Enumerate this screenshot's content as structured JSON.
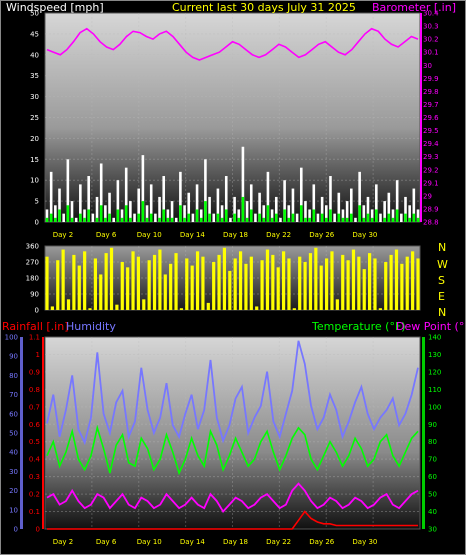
{
  "header": {
    "left_title": "Windspeed [mph]",
    "center_title": "Current last 30 days July 31 2025",
    "right_title": "Barometer [.in]"
  },
  "direction_labels": [
    "N",
    "W",
    "S",
    "E",
    "N"
  ],
  "bottom_header": {
    "rainfall": "Rainfall [.in]",
    "humidity": "Humidity",
    "temperature": "Temperature (°F)",
    "dewpoint": "Dew Point (°F)"
  },
  "colors": {
    "windspeed": "#ffffff",
    "gust": "#00ff00",
    "barometer": "#ff00ff",
    "direction": "#ffff00",
    "rainfall": "#ff0000",
    "humidity": "#7777ff",
    "temperature": "#00ff00",
    "dewpoint": "#ff00ff",
    "center_title": "#ffff00",
    "frame": "#cccccc"
  },
  "chart_data": [
    {
      "type": "line",
      "name": "wind-barometer",
      "x_ticks": [
        "Day 2",
        "Day 6",
        "Day 10",
        "Day 14",
        "Day 18",
        "Day 22",
        "Day 26",
        "Day 30"
      ],
      "y_left_ticks": [
        "0",
        "5",
        "10",
        "15",
        "20",
        "25",
        "30",
        "35",
        "40",
        "45",
        "50"
      ],
      "ylim_left": [
        0,
        50
      ],
      "y_right_ticks": [
        "28.8",
        "28.9",
        "29",
        "29.1",
        "29.2",
        "29.3",
        "29.4",
        "29.5",
        "29.6",
        "29.7",
        "29.8",
        "29.9",
        "30",
        "30.1",
        "30.2",
        "30.3",
        "30.4"
      ],
      "ylim_right": [
        28.8,
        30.4
      ],
      "series": [
        {
          "key": "windspeed",
          "axis": "left",
          "values": [
            3,
            12,
            4,
            8,
            2,
            15,
            5,
            1,
            9,
            3,
            11,
            2,
            6,
            14,
            4,
            7,
            1,
            10,
            3,
            13,
            5,
            2,
            8,
            16,
            4,
            9,
            2,
            6,
            11,
            3,
            5,
            1,
            12,
            4,
            7,
            2,
            9,
            3,
            15,
            6,
            2,
            8,
            4,
            11,
            1,
            6,
            3,
            18,
            5,
            9,
            2,
            7,
            4,
            12,
            3,
            6,
            1,
            10,
            4,
            8,
            2,
            13,
            5,
            3,
            9,
            2,
            6,
            4,
            11,
            2,
            7,
            3,
            5,
            8,
            1,
            12,
            4,
            6,
            3,
            9,
            2,
            5,
            7,
            3,
            10,
            2,
            6,
            4,
            8,
            3
          ]
        },
        {
          "key": "gust",
          "axis": "left",
          "values": [
            1,
            2,
            1,
            3,
            0,
            4,
            1,
            0,
            2,
            1,
            3,
            0,
            1,
            4,
            1,
            2,
            0,
            3,
            1,
            4,
            1,
            0,
            2,
            5,
            1,
            2,
            0,
            1,
            3,
            1,
            1,
            0,
            4,
            1,
            2,
            0,
            3,
            1,
            5,
            2,
            0,
            2,
            1,
            3,
            0,
            2,
            1,
            6,
            1,
            3,
            0,
            2,
            1,
            4,
            1,
            2,
            0,
            3,
            1,
            2,
            0,
            4,
            1,
            1,
            3,
            0,
            2,
            1,
            3,
            0,
            2,
            1,
            1,
            2,
            0,
            4,
            1,
            2,
            1,
            3,
            0,
            1,
            2,
            1,
            3,
            0,
            2,
            1,
            2,
            1
          ]
        },
        {
          "key": "barometer",
          "axis": "right",
          "values": [
            30.12,
            30.1,
            30.08,
            30.12,
            30.18,
            30.25,
            30.28,
            30.24,
            30.18,
            30.14,
            30.12,
            30.16,
            30.22,
            30.26,
            30.25,
            30.22,
            30.2,
            30.24,
            30.26,
            30.22,
            30.16,
            30.1,
            30.06,
            30.04,
            30.06,
            30.08,
            30.1,
            30.14,
            30.18,
            30.16,
            30.12,
            30.08,
            30.06,
            30.08,
            30.12,
            30.16,
            30.14,
            30.1,
            30.06,
            30.08,
            30.12,
            30.16,
            30.18,
            30.14,
            30.1,
            30.08,
            30.12,
            30.18,
            30.24,
            30.28,
            30.26,
            30.2,
            30.16,
            30.14,
            30.18,
            30.22,
            30.2
          ]
        }
      ]
    },
    {
      "type": "line",
      "name": "wind-direction",
      "y_left_ticks": [
        "0",
        "90",
        "180",
        "270",
        "360"
      ],
      "ylim_left": [
        0,
        360
      ],
      "series": [
        {
          "key": "direction",
          "axis": "left",
          "values": [
            300,
            20,
            280,
            340,
            60,
            310,
            250,
            330,
            10,
            290,
            200,
            320,
            350,
            30,
            270,
            240,
            330,
            300,
            60,
            280,
            310,
            340,
            200,
            260,
            320,
            10,
            290,
            250,
            330,
            300,
            40,
            270,
            310,
            350,
            220,
            290,
            330,
            260,
            300,
            20,
            280,
            340,
            310,
            240,
            330,
            290,
            10,
            300,
            270,
            320,
            350,
            250,
            290,
            330,
            60,
            310,
            280,
            340,
            300,
            230,
            320,
            290,
            10,
            270,
            310,
            340,
            260,
            300,
            330,
            290
          ]
        }
      ]
    },
    {
      "type": "line",
      "name": "rain-humidity-temperature",
      "x_ticks": [
        "Day 2",
        "Day 6",
        "Day 10",
        "Day 14",
        "Day 18",
        "Day 22",
        "Day 26",
        "Day 30"
      ],
      "y_left_ticks": [
        "0",
        "0.1",
        "0.2",
        "0.3",
        "0.4",
        "0.5",
        "0.6",
        "0.7",
        "0.8",
        "0.9",
        "1",
        "1.1"
      ],
      "ylim_left": [
        0,
        1.1
      ],
      "y_left2_ticks": [
        "0",
        "10",
        "20",
        "30",
        "40",
        "50",
        "60",
        "70",
        "80",
        "90",
        "100"
      ],
      "ylim_left2": [
        0,
        100
      ],
      "y_right_ticks": [
        "30",
        "40",
        "50",
        "60",
        "70",
        "80",
        "90",
        "100",
        "110",
        "120",
        "130",
        "140"
      ],
      "ylim_right": [
        30,
        140
      ],
      "series": [
        {
          "key": "humidity",
          "axis": "left2",
          "values": [
            55,
            70,
            48,
            62,
            80,
            52,
            45,
            58,
            92,
            60,
            50,
            66,
            72,
            48,
            56,
            84,
            62,
            50,
            58,
            76,
            54,
            48,
            60,
            70,
            52,
            62,
            88,
            58,
            46,
            54,
            68,
            74,
            50,
            58,
            64,
            82,
            56,
            48,
            60,
            72,
            98,
            86,
            64,
            52,
            58,
            70,
            62,
            48,
            56,
            66,
            74,
            60,
            52,
            58,
            62,
            68,
            54,
            60,
            70,
            84
          ]
        },
        {
          "key": "temperature",
          "axis": "right",
          "values": [
            72,
            80,
            66,
            74,
            86,
            70,
            64,
            72,
            88,
            76,
            62,
            78,
            84,
            68,
            66,
            82,
            76,
            64,
            70,
            84,
            74,
            62,
            70,
            82,
            72,
            66,
            86,
            78,
            64,
            72,
            82,
            74,
            66,
            70,
            80,
            86,
            74,
            64,
            72,
            82,
            88,
            84,
            70,
            64,
            72,
            80,
            74,
            66,
            72,
            82,
            76,
            66,
            70,
            80,
            84,
            72,
            66,
            74,
            82,
            86
          ]
        },
        {
          "key": "dewpoint",
          "axis": "right",
          "values": [
            48,
            50,
            44,
            46,
            52,
            46,
            42,
            44,
            50,
            48,
            42,
            46,
            50,
            44,
            42,
            48,
            46,
            42,
            44,
            50,
            46,
            42,
            44,
            48,
            44,
            42,
            50,
            46,
            40,
            44,
            48,
            46,
            42,
            44,
            48,
            50,
            46,
            42,
            44,
            52,
            56,
            52,
            46,
            42,
            44,
            48,
            46,
            42,
            44,
            48,
            46,
            42,
            44,
            48,
            50,
            44,
            42,
            46,
            50,
            52
          ]
        },
        {
          "key": "rainfall",
          "axis": "left",
          "values": [
            0,
            0,
            0,
            0,
            0,
            0,
            0,
            0,
            0,
            0,
            0,
            0,
            0,
            0,
            0,
            0,
            0,
            0,
            0,
            0,
            0,
            0,
            0,
            0,
            0,
            0,
            0,
            0,
            0,
            0,
            0,
            0,
            0,
            0,
            0,
            0,
            0,
            0,
            0,
            0,
            0.05,
            0.1,
            0.06,
            0.04,
            0.03,
            0.03,
            0.02,
            0.02,
            0.02,
            0.02,
            0.02,
            0.02,
            0.02,
            0.02,
            0.02,
            0.02,
            0.02,
            0.02,
            0.02,
            0.02
          ]
        }
      ]
    }
  ]
}
